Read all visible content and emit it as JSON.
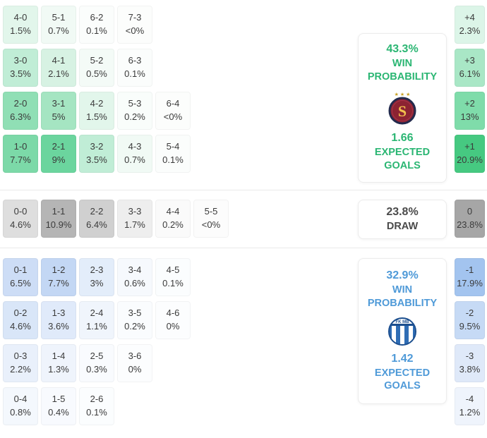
{
  "chart_data": {
    "type": "heatmap",
    "description": "Correct score probability matrix with goal margins, win probabilities and expected goals",
    "home": {
      "accent": "#2bb673",
      "panel": {
        "win_pct": "43.3%",
        "win_line1": "WIN",
        "win_line2": "PROBABILITY",
        "xg": "1.66",
        "xg_line1": "EXPECTED",
        "xg_line2": "GOALS",
        "logo": "sparta-praha-crest"
      },
      "rows": [
        [
          {
            "score": "4-0",
            "pct": "1.5%",
            "bg": "#e2f6eb"
          },
          {
            "score": "5-1",
            "pct": "0.7%",
            "bg": "#f1faf5"
          },
          {
            "score": "6-2",
            "pct": "0.1%",
            "bg": "#fbfdfc"
          },
          {
            "score": "7-3",
            "pct": "<0%",
            "bg": "#fcfdfc"
          }
        ],
        [
          {
            "score": "3-0",
            "pct": "3.5%",
            "bg": "#c0edd6"
          },
          {
            "score": "4-1",
            "pct": "2.1%",
            "bg": "#d7f2e3"
          },
          {
            "score": "5-2",
            "pct": "0.5%",
            "bg": "#f4fbf7"
          },
          {
            "score": "6-3",
            "pct": "0.1%",
            "bg": "#fbfdfc"
          }
        ],
        [
          {
            "score": "2-0",
            "pct": "6.3%",
            "bg": "#90dfb5"
          },
          {
            "score": "3-1",
            "pct": "5%",
            "bg": "#a5e5c2"
          },
          {
            "score": "4-2",
            "pct": "1.5%",
            "bg": "#e2f6eb"
          },
          {
            "score": "5-3",
            "pct": "0.2%",
            "bg": "#f9fdfb"
          },
          {
            "score": "6-4",
            "pct": "<0%",
            "bg": "#fcfdfc"
          }
        ],
        [
          {
            "score": "1-0",
            "pct": "7.7%",
            "bg": "#7cd9a8"
          },
          {
            "score": "2-1",
            "pct": "9%",
            "bg": "#6bd59e"
          },
          {
            "score": "3-2",
            "pct": "3.5%",
            "bg": "#c0edd6"
          },
          {
            "score": "4-3",
            "pct": "0.7%",
            "bg": "#f1faf5"
          },
          {
            "score": "5-4",
            "pct": "0.1%",
            "bg": "#fbfdfc"
          }
        ]
      ],
      "margins": [
        {
          "label": "+4",
          "pct": "2.3%",
          "bg": "#dcf5e8"
        },
        {
          "label": "+3",
          "pct": "6.1%",
          "bg": "#a9e7c6"
        },
        {
          "label": "+2",
          "pct": "13%",
          "bg": "#7fdcaa"
        },
        {
          "label": "+1",
          "pct": "20.9%",
          "bg": "#46c981"
        }
      ]
    },
    "draw": {
      "accent": "#4a4a4a",
      "panel": {
        "pct": "23.8%",
        "label": "DRAW"
      },
      "rows": [
        [
          {
            "score": "0-0",
            "pct": "4.6%",
            "bg": "#dedede"
          },
          {
            "score": "1-1",
            "pct": "10.9%",
            "bg": "#b5b5b5"
          },
          {
            "score": "2-2",
            "pct": "6.4%",
            "bg": "#d0d0d0"
          },
          {
            "score": "3-3",
            "pct": "1.7%",
            "bg": "#eeeeee"
          },
          {
            "score": "4-4",
            "pct": "0.2%",
            "bg": "#fafafa"
          },
          {
            "score": "5-5",
            "pct": "<0%",
            "bg": "#fcfcfc"
          }
        ]
      ],
      "margins": [
        {
          "label": "0",
          "pct": "23.8%",
          "bg": "#a6a6a6"
        }
      ]
    },
    "away": {
      "accent": "#4f9ad8",
      "panel": {
        "win_pct": "32.9%",
        "win_line1": "WIN",
        "win_line2": "PROBABILITY",
        "xg": "1.42",
        "xg_line1": "EXPECTED",
        "xg_line2": "GOALS",
        "logo": "mlada-boleslav-crest"
      },
      "rows": [
        [
          {
            "score": "0-1",
            "pct": "6.5%",
            "bg": "#cdddf6"
          },
          {
            "score": "1-2",
            "pct": "7.7%",
            "bg": "#c3d7f4"
          },
          {
            "score": "2-3",
            "pct": "3%",
            "bg": "#e3edfa"
          },
          {
            "score": "3-4",
            "pct": "0.6%",
            "bg": "#f6f9fd"
          },
          {
            "score": "4-5",
            "pct": "0.1%",
            "bg": "#fbfdfe"
          }
        ],
        [
          {
            "score": "0-2",
            "pct": "4.6%",
            "bg": "#d9e6f8"
          },
          {
            "score": "1-3",
            "pct": "3.6%",
            "bg": "#e0eafa"
          },
          {
            "score": "2-4",
            "pct": "1.1%",
            "bg": "#f0f5fc"
          },
          {
            "score": "3-5",
            "pct": "0.2%",
            "bg": "#fafcfe"
          },
          {
            "score": "4-6",
            "pct": "0%",
            "bg": "#fcfdfe"
          }
        ],
        [
          {
            "score": "0-3",
            "pct": "2.2%",
            "bg": "#e9f0fb"
          },
          {
            "score": "1-4",
            "pct": "1.3%",
            "bg": "#eff4fc"
          },
          {
            "score": "2-5",
            "pct": "0.3%",
            "bg": "#f9fbfe"
          },
          {
            "score": "3-6",
            "pct": "0%",
            "bg": "#fcfdfe"
          }
        ],
        [
          {
            "score": "0-4",
            "pct": "0.8%",
            "bg": "#f4f8fd"
          },
          {
            "score": "1-5",
            "pct": "0.4%",
            "bg": "#f8fafe"
          },
          {
            "score": "2-6",
            "pct": "0.1%",
            "bg": "#fbfdfe"
          }
        ]
      ],
      "margins": [
        {
          "label": "-1",
          "pct": "17.9%",
          "bg": "#a3c4ef"
        },
        {
          "label": "-2",
          "pct": "9.5%",
          "bg": "#c6daf5"
        },
        {
          "label": "-3",
          "pct": "3.8%",
          "bg": "#dfe9f9"
        },
        {
          "label": "-4",
          "pct": "1.2%",
          "bg": "#eff4fc"
        }
      ]
    }
  }
}
